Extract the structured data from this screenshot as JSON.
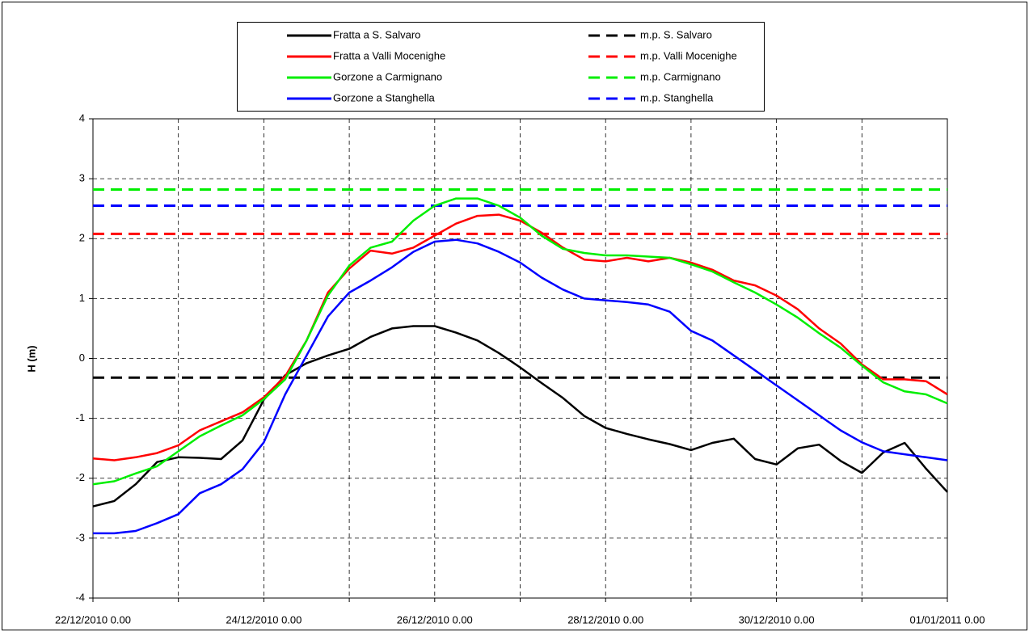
{
  "chart_data": {
    "type": "line",
    "ylabel": "H (m)",
    "ylim": [
      -4,
      4
    ],
    "yticks": [
      -4,
      -3,
      -2,
      -1,
      0,
      1,
      2,
      3,
      4
    ],
    "grid": true,
    "xlim": [
      "2010-12-22T00:00",
      "2011-01-01T00:00"
    ],
    "xticks": [
      {
        "value": "2010-12-22T00:00",
        "label": "22/12/2010 0.00"
      },
      {
        "value": "2010-12-24T00:00",
        "label": "24/12/2010 0.00"
      },
      {
        "value": "2010-12-26T00:00",
        "label": "26/12/2010 0.00"
      },
      {
        "value": "2010-12-28T00:00",
        "label": "28/12/2010 0.00"
      },
      {
        "value": "2010-12-30T00:00",
        "label": "30/12/2010 0.00"
      },
      {
        "value": "2011-01-01T00:00",
        "label": "01/01/2011 0.00"
      }
    ],
    "xminor_ticks": [
      "2010-12-23T00:00",
      "2010-12-25T00:00",
      "2010-12-27T00:00",
      "2010-12-29T00:00",
      "2010-12-31T00:00"
    ],
    "x": [
      "2010-12-22T00:00",
      "2010-12-22T06:00",
      "2010-12-22T12:00",
      "2010-12-22T18:00",
      "2010-12-23T00:00",
      "2010-12-23T06:00",
      "2010-12-23T12:00",
      "2010-12-23T18:00",
      "2010-12-24T00:00",
      "2010-12-24T06:00",
      "2010-12-24T12:00",
      "2010-12-24T18:00",
      "2010-12-25T00:00",
      "2010-12-25T06:00",
      "2010-12-25T12:00",
      "2010-12-25T18:00",
      "2010-12-26T00:00",
      "2010-12-26T06:00",
      "2010-12-26T12:00",
      "2010-12-26T18:00",
      "2010-12-27T00:00",
      "2010-12-27T06:00",
      "2010-12-27T12:00",
      "2010-12-27T18:00",
      "2010-12-28T00:00",
      "2010-12-28T06:00",
      "2010-12-28T12:00",
      "2010-12-28T18:00",
      "2010-12-29T00:00",
      "2010-12-29T06:00",
      "2010-12-29T12:00",
      "2010-12-29T18:00",
      "2010-12-30T00:00",
      "2010-12-30T06:00",
      "2010-12-30T12:00",
      "2010-12-30T18:00",
      "2010-12-31T00:00",
      "2010-12-31T06:00",
      "2010-12-31T12:00",
      "2010-12-31T18:00",
      "2011-01-01T00:00"
    ],
    "series": [
      {
        "name": "Fratta a S. Salvaro",
        "color": "#000000",
        "values": [
          -2.47,
          -2.38,
          -2.1,
          -1.73,
          -1.65,
          -1.66,
          -1.68,
          -1.37,
          -0.69,
          -0.28,
          -0.08,
          0.05,
          0.16,
          0.36,
          0.5,
          0.54,
          0.54,
          0.43,
          0.3,
          0.09,
          -0.15,
          -0.41,
          -0.66,
          -0.96,
          -1.16,
          -1.26,
          -1.35,
          -1.43,
          -1.53,
          -1.41,
          -1.34,
          -1.68,
          -1.77,
          -1.5,
          -1.44,
          -1.71,
          -1.91,
          -1.57,
          -1.41,
          -1.84,
          -2.23
        ]
      },
      {
        "name": "Fratta a Valli Mocenighe",
        "color": "#ff0000",
        "values": [
          -1.67,
          -1.7,
          -1.65,
          -1.58,
          -1.45,
          -1.2,
          -1.05,
          -0.9,
          -0.65,
          -0.3,
          0.3,
          1.1,
          1.5,
          1.8,
          1.75,
          1.85,
          2.05,
          2.25,
          2.38,
          2.4,
          2.3,
          2.1,
          1.85,
          1.65,
          1.62,
          1.68,
          1.62,
          1.68,
          1.6,
          1.48,
          1.3,
          1.22,
          1.05,
          0.82,
          0.5,
          0.25,
          -0.1,
          -0.35,
          -0.35,
          -0.38,
          -0.6
        ]
      },
      {
        "name": "Gorzone a Carmignano",
        "color": "#00ee00",
        "values": [
          -2.1,
          -2.05,
          -1.92,
          -1.8,
          -1.55,
          -1.3,
          -1.12,
          -0.95,
          -0.68,
          -0.35,
          0.3,
          1.05,
          1.55,
          1.85,
          1.95,
          2.3,
          2.55,
          2.67,
          2.67,
          2.55,
          2.35,
          2.05,
          1.83,
          1.76,
          1.72,
          1.72,
          1.7,
          1.68,
          1.57,
          1.45,
          1.27,
          1.1,
          0.9,
          0.68,
          0.42,
          0.18,
          -0.12,
          -0.4,
          -0.55,
          -0.6,
          -0.75
        ]
      },
      {
        "name": "Gorzone a Stanghella",
        "color": "#0000ff",
        "values": [
          -2.92,
          -2.92,
          -2.88,
          -2.75,
          -2.6,
          -2.25,
          -2.1,
          -1.85,
          -1.4,
          -0.6,
          0.05,
          0.7,
          1.1,
          1.3,
          1.52,
          1.78,
          1.95,
          1.98,
          1.92,
          1.78,
          1.6,
          1.35,
          1.15,
          1.0,
          0.97,
          0.94,
          0.9,
          0.78,
          0.46,
          0.3,
          0.05,
          -0.2,
          -0.45,
          -0.7,
          -0.95,
          -1.2,
          -1.4,
          -1.55,
          -1.6,
          -1.65,
          -1.7
        ]
      }
    ],
    "reference_lines": [
      {
        "name": "m.p. S. Salvaro",
        "color": "#000000",
        "value": -0.32
      },
      {
        "name": "m.p. Valli Mocenighe",
        "color": "#ff0000",
        "value": 2.08
      },
      {
        "name": "m.p. Carmignano",
        "color": "#00ee00",
        "value": 2.82
      },
      {
        "name": "m.p. Stanghella",
        "color": "#0000ff",
        "value": 2.55
      }
    ]
  }
}
